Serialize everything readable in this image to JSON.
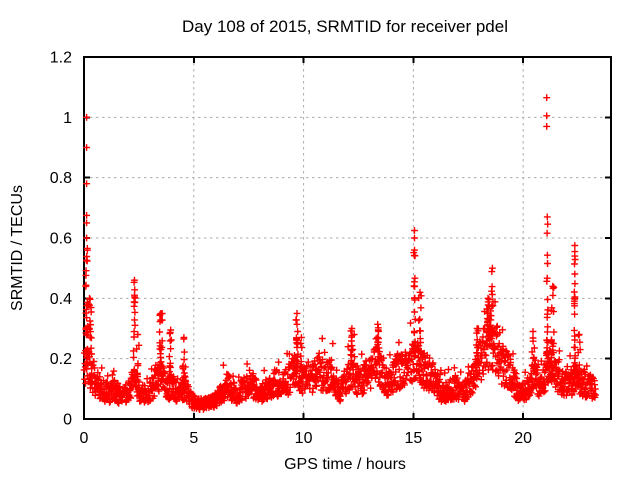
{
  "window": {
    "background": "#ffffff"
  },
  "chart_data": {
    "type": "scatter",
    "title": "Day 108 of 2015, SRMTID for receiver pdel",
    "xlabel": "GPS time / hours",
    "ylabel": "SRMTID / TECUs",
    "xlim": [
      0,
      24
    ],
    "ylim": [
      0,
      1.2
    ],
    "xticks": [
      0,
      5,
      10,
      15,
      20
    ],
    "xtick_labels": [
      "0",
      "5",
      "10",
      "15",
      "20"
    ],
    "yticks": [
      0,
      0.2,
      0.4,
      0.6,
      0.8,
      1,
      1.2
    ],
    "ytick_labels": [
      "0",
      "0.2",
      "0.4",
      "0.6",
      "0.8",
      "1",
      "1.2"
    ],
    "grid": true,
    "legend": "none",
    "marker": "plus",
    "marker_color": "#ff0000",
    "grid_color": "#ababab",
    "axis_color": "#000000",
    "series_name": "SRMTID",
    "sampling": {
      "start": 0.0,
      "end": 23.3,
      "count": 1900,
      "seed": 20150108
    },
    "noise": {
      "low": 0.62,
      "span": 0.76,
      "tail_prob": 0.07,
      "tail_mult": 1.35,
      "min": 0.025,
      "column_power": 1.2
    },
    "baseline_envelope": [
      [
        0,
        0.16
      ],
      [
        0.15,
        0.18
      ],
      [
        0.3,
        0.15
      ],
      [
        0.5,
        0.12
      ],
      [
        0.8,
        0.1
      ],
      [
        1.1,
        0.085
      ],
      [
        1.4,
        0.095
      ],
      [
        1.7,
        0.075
      ],
      [
        2,
        0.09
      ],
      [
        2.3,
        0.13
      ],
      [
        2.6,
        0.08
      ],
      [
        2.9,
        0.09
      ],
      [
        3.2,
        0.11
      ],
      [
        3.5,
        0.14
      ],
      [
        3.8,
        0.1
      ],
      [
        4,
        0.11
      ],
      [
        4.3,
        0.08
      ],
      [
        4.6,
        0.1
      ],
      [
        4.9,
        0.06
      ],
      [
        5.2,
        0.05
      ],
      [
        5.6,
        0.05
      ],
      [
        6,
        0.065
      ],
      [
        6.3,
        0.095
      ],
      [
        6.6,
        0.11
      ],
      [
        6.9,
        0.08
      ],
      [
        7.2,
        0.095
      ],
      [
        7.5,
        0.11
      ],
      [
        7.8,
        0.1
      ],
      [
        8.1,
        0.085
      ],
      [
        8.4,
        0.1
      ],
      [
        8.7,
        0.13
      ],
      [
        9,
        0.1
      ],
      [
        9.3,
        0.13
      ],
      [
        9.6,
        0.16
      ],
      [
        9.8,
        0.15
      ],
      [
        10.1,
        0.12
      ],
      [
        10.4,
        0.13
      ],
      [
        10.7,
        0.16
      ],
      [
        11,
        0.13
      ],
      [
        11.3,
        0.16
      ],
      [
        11.6,
        0.09
      ],
      [
        11.9,
        0.12
      ],
      [
        12.2,
        0.17
      ],
      [
        12.5,
        0.12
      ],
      [
        12.8,
        0.14
      ],
      [
        13.1,
        0.16
      ],
      [
        13.4,
        0.19
      ],
      [
        13.7,
        0.12
      ],
      [
        14,
        0.13
      ],
      [
        14.3,
        0.16
      ],
      [
        14.6,
        0.15
      ],
      [
        14.9,
        0.18
      ],
      [
        15.1,
        0.2
      ],
      [
        15.4,
        0.17
      ],
      [
        15.7,
        0.15
      ],
      [
        16,
        0.13
      ],
      [
        16.3,
        0.08
      ],
      [
        16.7,
        0.1
      ],
      [
        17,
        0.1
      ],
      [
        17.3,
        0.09
      ],
      [
        17.6,
        0.12
      ],
      [
        17.9,
        0.17
      ],
      [
        18.1,
        0.2
      ],
      [
        18.4,
        0.26
      ],
      [
        18.7,
        0.26
      ],
      [
        19,
        0.18
      ],
      [
        19.3,
        0.16
      ],
      [
        19.6,
        0.12
      ],
      [
        19.9,
        0.08
      ],
      [
        20.2,
        0.1
      ],
      [
        20.45,
        0.16
      ],
      [
        20.8,
        0.1
      ],
      [
        21.1,
        0.17
      ],
      [
        21.4,
        0.16
      ],
      [
        21.7,
        0.13
      ],
      [
        22,
        0.11
      ],
      [
        22.3,
        0.13
      ],
      [
        22.6,
        0.12
      ],
      [
        22.9,
        0.11
      ],
      [
        23.3,
        0.1
      ]
    ],
    "spike_columns": [
      {
        "x": 0.12,
        "top": 0.6,
        "width": 0.08,
        "count": 26
      },
      {
        "x": 0.25,
        "top": 0.4,
        "width": 0.2,
        "count": 22
      },
      {
        "x": 2.3,
        "top": 0.46,
        "width": 0.06,
        "count": 18
      },
      {
        "x": 2.45,
        "top": 0.28,
        "width": 0.12,
        "count": 10
      },
      {
        "x": 3.5,
        "top": 0.35,
        "width": 0.14,
        "count": 22
      },
      {
        "x": 3.95,
        "top": 0.295,
        "width": 0.12,
        "count": 16
      },
      {
        "x": 4.55,
        "top": 0.27,
        "width": 0.14,
        "count": 16
      },
      {
        "x": 9.7,
        "top": 0.35,
        "width": 0.1,
        "count": 18
      },
      {
        "x": 9.9,
        "top": 0.27,
        "width": 0.12,
        "count": 10
      },
      {
        "x": 12.2,
        "top": 0.3,
        "width": 0.1,
        "count": 14
      },
      {
        "x": 13.4,
        "top": 0.295,
        "width": 0.12,
        "count": 14
      },
      {
        "x": 15.05,
        "top": 0.56,
        "width": 0.07,
        "count": 20
      },
      {
        "x": 15.3,
        "top": 0.42,
        "width": 0.12,
        "count": 14
      },
      {
        "x": 17.9,
        "top": 0.3,
        "width": 0.15,
        "count": 14
      },
      {
        "x": 18.4,
        "top": 0.4,
        "width": 0.25,
        "count": 24
      },
      {
        "x": 18.6,
        "top": 0.5,
        "width": 0.08,
        "count": 12
      },
      {
        "x": 20.45,
        "top": 0.29,
        "width": 0.18,
        "count": 12
      },
      {
        "x": 21.1,
        "top": 0.67,
        "width": 0.06,
        "count": 24
      },
      {
        "x": 21.35,
        "top": 0.44,
        "width": 0.14,
        "count": 18
      },
      {
        "x": 22.35,
        "top": 0.54,
        "width": 0.05,
        "count": 24
      },
      {
        "x": 22.55,
        "top": 0.28,
        "width": 0.1,
        "count": 10
      }
    ],
    "outlier_points": [
      {
        "x": 0.12,
        "ys": [
          1.0,
          0.9,
          0.78,
          0.675,
          0.65
        ]
      },
      {
        "x": 15.05,
        "ys": [
          0.625,
          0.6
        ]
      },
      {
        "x": 21.07,
        "ys": [
          1.065,
          1.005,
          0.97
        ]
      },
      {
        "x": 22.35,
        "ys": [
          0.575,
          0.555
        ]
      }
    ]
  }
}
